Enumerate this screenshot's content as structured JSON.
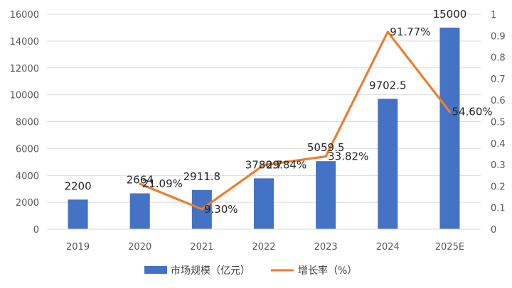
{
  "chart_data": {
    "type": "bar+line",
    "title": "",
    "categories": [
      "2019",
      "2020",
      "2021",
      "2022",
      "2023",
      "2024",
      "2025E"
    ],
    "series": [
      {
        "name": "市场规模（亿元）",
        "type": "bar",
        "axis": "left",
        "color": "#4472C4",
        "values": [
          2200,
          2664,
          2911.8,
          3780.7,
          5059.5,
          9702.5,
          15000
        ],
        "labels": [
          "2200",
          "2664",
          "2911.8",
          "3780.7",
          "5059.5",
          "9702.5",
          "15000"
        ]
      },
      {
        "name": "增长率（%）",
        "type": "line",
        "axis": "right",
        "color": "#ED7D31",
        "values": [
          null,
          0.2109,
          0.093,
          0.2984,
          0.3382,
          0.9177,
          0.546
        ],
        "labels": [
          "",
          "21.09%",
          "9.30%",
          "29.84%",
          "33.82%",
          "91.77%",
          "54.60%"
        ]
      }
    ],
    "y_left": {
      "min": 0,
      "max": 16000,
      "step": 2000,
      "ticks": [
        "0",
        "2000",
        "4000",
        "6000",
        "8000",
        "10000",
        "12000",
        "14000",
        "16000"
      ]
    },
    "y_right": {
      "min": 0,
      "max": 1,
      "step": 0.1,
      "ticks": [
        "0",
        "0.1",
        "0.2",
        "0.3",
        "0.4",
        "0.5",
        "0.6",
        "0.7",
        "0.8",
        "0.9",
        "1"
      ]
    },
    "grid": true,
    "legend_position": "bottom-center"
  }
}
